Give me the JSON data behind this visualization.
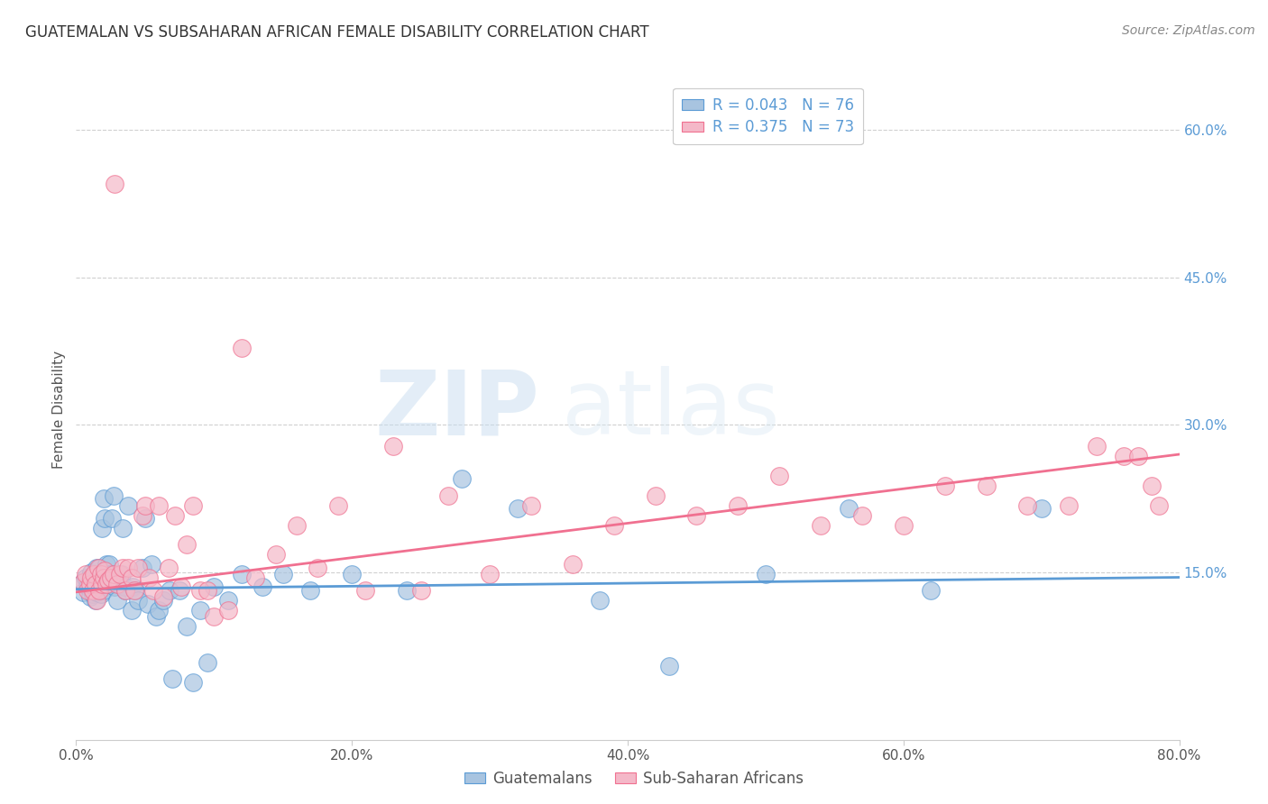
{
  "title": "GUATEMALAN VS SUBSAHARAN AFRICAN FEMALE DISABILITY CORRELATION CHART",
  "source": "Source: ZipAtlas.com",
  "ylabel": "Female Disability",
  "xlim": [
    0.0,
    0.8
  ],
  "ylim": [
    -0.02,
    0.65
  ],
  "xticks": [
    0.0,
    0.2,
    0.4,
    0.6,
    0.8
  ],
  "yticks_right": [
    0.15,
    0.3,
    0.45,
    0.6
  ],
  "ytick_labels_right": [
    "15.0%",
    "30.0%",
    "45.0%",
    "60.0%"
  ],
  "xtick_labels": [
    "0.0%",
    "20.0%",
    "40.0%",
    "60.0%",
    "80.0%"
  ],
  "R_guatemalan": 0.043,
  "N_guatemalan": 76,
  "R_subsaharan": 0.375,
  "N_subsaharan": 73,
  "color_guatemalan": "#a8c4e0",
  "color_subsaharan": "#f4b8c8",
  "line_color_guatemalan": "#5b9bd5",
  "line_color_subsaharan": "#f07090",
  "legend_label_guatemalan": "Guatemalans",
  "legend_label_subsaharan": "Sub-Saharan Africans",
  "watermark_zip": "ZIP",
  "watermark_atlas": "atlas",
  "background_color": "#ffffff",
  "grid_color": "#d0d0d0",
  "title_color": "#333333",
  "source_color": "#888888",
  "axis_label_color": "#555555",
  "right_tick_color": "#5b9bd5",
  "guatemalan_x": [
    0.005,
    0.005,
    0.007,
    0.008,
    0.009,
    0.01,
    0.01,
    0.011,
    0.012,
    0.012,
    0.013,
    0.013,
    0.014,
    0.014,
    0.015,
    0.015,
    0.015,
    0.016,
    0.016,
    0.017,
    0.017,
    0.018,
    0.018,
    0.019,
    0.02,
    0.02,
    0.021,
    0.022,
    0.022,
    0.023,
    0.024,
    0.025,
    0.026,
    0.027,
    0.028,
    0.03,
    0.031,
    0.033,
    0.034,
    0.035,
    0.036,
    0.038,
    0.04,
    0.041,
    0.043,
    0.045,
    0.048,
    0.05,
    0.052,
    0.055,
    0.058,
    0.06,
    0.063,
    0.068,
    0.07,
    0.075,
    0.08,
    0.085,
    0.09,
    0.095,
    0.1,
    0.11,
    0.12,
    0.135,
    0.15,
    0.17,
    0.2,
    0.24,
    0.28,
    0.32,
    0.38,
    0.43,
    0.5,
    0.56,
    0.62,
    0.7
  ],
  "guatemalan_y": [
    0.13,
    0.14,
    0.145,
    0.135,
    0.138,
    0.142,
    0.125,
    0.15,
    0.132,
    0.128,
    0.145,
    0.138,
    0.122,
    0.148,
    0.155,
    0.13,
    0.142,
    0.148,
    0.135,
    0.14,
    0.155,
    0.138,
    0.128,
    0.195,
    0.225,
    0.132,
    0.205,
    0.158,
    0.148,
    0.138,
    0.158,
    0.148,
    0.205,
    0.228,
    0.135,
    0.122,
    0.138,
    0.148,
    0.195,
    0.135,
    0.132,
    0.218,
    0.112,
    0.135,
    0.132,
    0.122,
    0.155,
    0.205,
    0.118,
    0.158,
    0.105,
    0.112,
    0.122,
    0.132,
    0.042,
    0.132,
    0.095,
    0.038,
    0.112,
    0.058,
    0.135,
    0.122,
    0.148,
    0.135,
    0.148,
    0.132,
    0.148,
    0.132,
    0.245,
    0.215,
    0.122,
    0.055,
    0.148,
    0.215,
    0.132,
    0.215
  ],
  "subsaharan_x": [
    0.005,
    0.007,
    0.008,
    0.01,
    0.011,
    0.012,
    0.013,
    0.014,
    0.015,
    0.016,
    0.017,
    0.018,
    0.019,
    0.02,
    0.021,
    0.022,
    0.023,
    0.025,
    0.027,
    0.028,
    0.03,
    0.032,
    0.034,
    0.036,
    0.038,
    0.04,
    0.042,
    0.045,
    0.048,
    0.05,
    0.053,
    0.056,
    0.06,
    0.063,
    0.067,
    0.072,
    0.076,
    0.08,
    0.085,
    0.09,
    0.095,
    0.1,
    0.11,
    0.12,
    0.13,
    0.145,
    0.16,
    0.175,
    0.19,
    0.21,
    0.23,
    0.25,
    0.27,
    0.3,
    0.33,
    0.36,
    0.39,
    0.42,
    0.45,
    0.48,
    0.51,
    0.54,
    0.57,
    0.6,
    0.63,
    0.66,
    0.69,
    0.72,
    0.74,
    0.76,
    0.77,
    0.78,
    0.785
  ],
  "subsaharan_y": [
    0.14,
    0.148,
    0.132,
    0.138,
    0.145,
    0.132,
    0.148,
    0.138,
    0.122,
    0.155,
    0.132,
    0.148,
    0.138,
    0.145,
    0.152,
    0.138,
    0.142,
    0.145,
    0.148,
    0.545,
    0.138,
    0.148,
    0.155,
    0.132,
    0.155,
    0.145,
    0.132,
    0.155,
    0.208,
    0.218,
    0.145,
    0.132,
    0.218,
    0.125,
    0.155,
    0.208,
    0.135,
    0.178,
    0.218,
    0.132,
    0.132,
    0.105,
    0.112,
    0.378,
    0.145,
    0.168,
    0.198,
    0.155,
    0.218,
    0.132,
    0.278,
    0.132,
    0.228,
    0.148,
    0.218,
    0.158,
    0.198,
    0.228,
    0.208,
    0.218,
    0.248,
    0.198,
    0.208,
    0.198,
    0.238,
    0.238,
    0.218,
    0.218,
    0.278,
    0.268,
    0.268,
    0.238,
    0.218
  ],
  "trend_g_x0": 0.0,
  "trend_g_x1": 0.8,
  "trend_g_y0": 0.133,
  "trend_g_y1": 0.145,
  "trend_s_x0": 0.0,
  "trend_s_x1": 0.8,
  "trend_s_y0": 0.13,
  "trend_s_y1": 0.27
}
